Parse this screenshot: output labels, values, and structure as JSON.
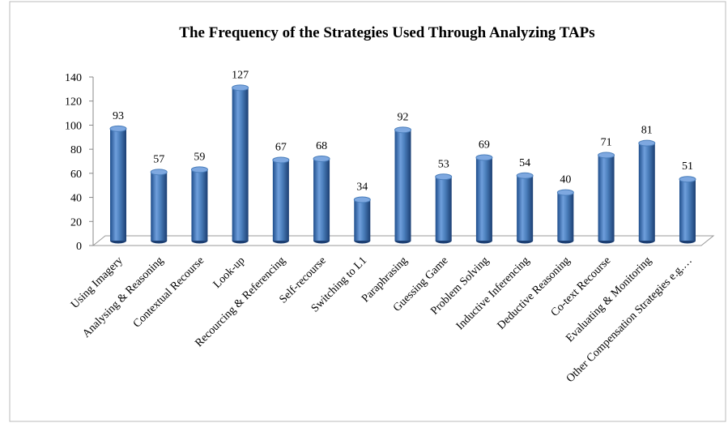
{
  "chart_data": {
    "type": "bar",
    "title": "The Frequency of the Strategies Used Through Analyzing TAPs",
    "categories": [
      "Using Imagery",
      "Analysing & Reasoning",
      "Contextual Recourse",
      "Look-up",
      "Recourcing & Referencing",
      "Self-recourse",
      "Switching to L1",
      "Paraphrasing",
      "Guessing Game",
      "Problem Solving",
      "Inductive Inferencing",
      "Deductive Reasoning",
      "Co-text Recourse",
      "Evaluating & Monitoring",
      "Other Compensation Strategies e.g.…"
    ],
    "values": [
      93,
      57,
      59,
      127,
      67,
      68,
      34,
      92,
      53,
      69,
      54,
      40,
      71,
      81,
      51
    ],
    "color": "#4a7ebb",
    "ylim": [
      0,
      140
    ],
    "yticks": [
      0,
      20,
      40,
      60,
      80,
      100,
      120,
      140
    ],
    "grid": false
  }
}
